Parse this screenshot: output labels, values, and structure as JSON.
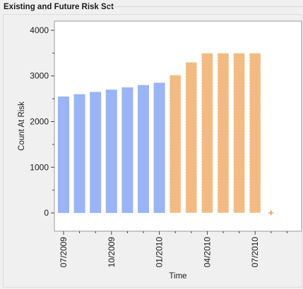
{
  "panel": {
    "title": "Existing and Future Risk Set"
  },
  "chart_data": {
    "type": "bar",
    "title": "",
    "xlabel": "Time",
    "ylabel": "Count At Risk",
    "ylim": [
      -400,
      4200
    ],
    "yticks": [
      0,
      1000,
      2000,
      3000,
      4000
    ],
    "xticks": [
      "07/2009",
      "10/2009",
      "01/2010",
      "04/2010",
      "07/2010"
    ],
    "grid": false,
    "legend": "none",
    "series": [
      {
        "group": "existing",
        "color": "#99b4f7",
        "x": [
          "2009-07",
          "2009-08",
          "2009-09",
          "2009-10",
          "2009-11",
          "2009-12",
          "2010-01"
        ],
        "values": [
          2550,
          2600,
          2650,
          2700,
          2750,
          2800,
          2850
        ]
      },
      {
        "group": "future",
        "color": "#f3bb81",
        "x": [
          "2010-02",
          "2010-03",
          "2010-04",
          "2010-05",
          "2010-06",
          "2010-07"
        ],
        "values": [
          3020,
          3300,
          3500,
          3500,
          3500,
          3500
        ]
      }
    ],
    "markers": [
      {
        "symbol": "+",
        "x": "2010-08",
        "value": 0,
        "color": "#e07b1a"
      }
    ]
  }
}
